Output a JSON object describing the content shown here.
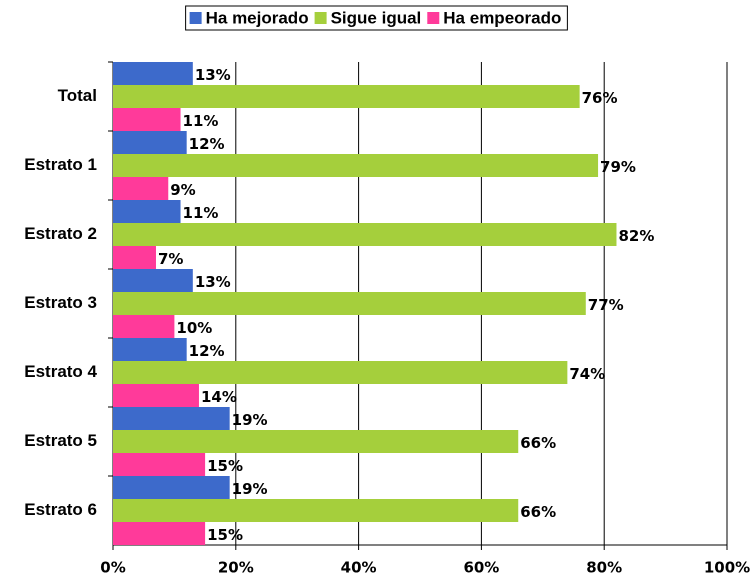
{
  "chart_data": {
    "type": "bar",
    "orientation": "horizontal",
    "categories": [
      "Total",
      "Estrato 1",
      "Estrato 2",
      "Estrato 3",
      "Estrato 4",
      "Estrato 5",
      "Estrato 6"
    ],
    "series": [
      {
        "name": "Ha mejorado",
        "color": "#3d6acb",
        "values": [
          13,
          12,
          11,
          13,
          12,
          19,
          19
        ],
        "value_labels": [
          "13%",
          "12%",
          "11%",
          "13%",
          "12%",
          "19%",
          "19%"
        ]
      },
      {
        "name": "Sigue igual",
        "color": "#a5cf3c",
        "values": [
          76,
          79,
          82,
          77,
          74,
          66,
          66
        ],
        "value_labels": [
          "76%",
          "79%",
          "82%",
          "77%",
          "74%",
          "66%",
          "66%"
        ]
      },
      {
        "name": "Ha empeorado",
        "color": "#ff3a9a",
        "values": [
          11,
          9,
          7,
          10,
          14,
          15,
          15
        ],
        "value_labels": [
          "11%",
          "9%",
          "7%",
          "10%",
          "14%",
          "15%",
          "15%"
        ]
      }
    ],
    "xlim": [
      0,
      100
    ],
    "xticks": [
      {
        "value": 0,
        "label": "0%"
      },
      {
        "value": 20,
        "label": "20%"
      },
      {
        "value": 40,
        "label": "40%"
      },
      {
        "value": 60,
        "label": "60%"
      },
      {
        "value": 80,
        "label": "80%"
      },
      {
        "value": 100,
        "label": "100%"
      }
    ],
    "grid": true,
    "legend": "top"
  }
}
